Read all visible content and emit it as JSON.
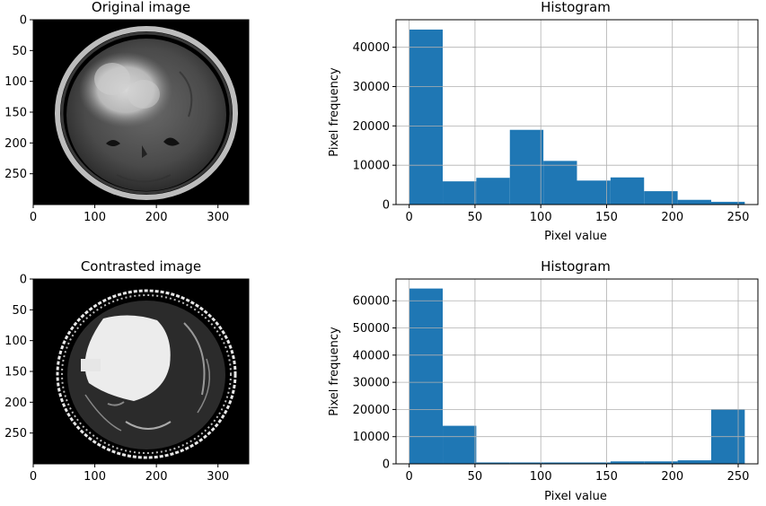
{
  "chart_data": [
    {
      "type": "image",
      "title": "Original image",
      "xticks": [
        0,
        100,
        200,
        300
      ],
      "yticks": [
        0,
        50,
        100,
        150,
        200,
        250
      ],
      "xlim": [
        0,
        350
      ],
      "ylim": [
        300,
        0
      ],
      "image_description_key": "mri-original"
    },
    {
      "type": "bar",
      "title": "Histogram",
      "xlabel": "Pixel value",
      "ylabel": "Pixel frequency",
      "grid": true,
      "xlim": [
        -10,
        265
      ],
      "ylim": [
        0,
        47000
      ],
      "xticks": [
        0,
        50,
        100,
        150,
        200,
        250
      ],
      "yticks": [
        0,
        10000,
        20000,
        30000,
        40000
      ],
      "bin_edges": [
        0,
        25.5,
        51,
        76.5,
        102,
        127.5,
        153,
        178.5,
        204,
        229.5,
        255
      ],
      "values": [
        44500,
        5900,
        6800,
        19000,
        11100,
        6100,
        6900,
        3400,
        1200,
        700
      ],
      "color": "#1f77b4"
    },
    {
      "type": "image",
      "title": "Contrasted image",
      "xticks": [
        0,
        100,
        200,
        300
      ],
      "yticks": [
        0,
        50,
        100,
        150,
        200,
        250
      ],
      "xlim": [
        0,
        350
      ],
      "ylim": [
        300,
        0
      ],
      "image_description_key": "mri-contrasted"
    },
    {
      "type": "bar",
      "title": "Histogram",
      "xlabel": "Pixel value",
      "ylabel": "Pixel frequency",
      "grid": true,
      "xlim": [
        -10,
        265
      ],
      "ylim": [
        0,
        68000
      ],
      "xticks": [
        0,
        50,
        100,
        150,
        200,
        250
      ],
      "yticks": [
        0,
        10000,
        20000,
        30000,
        40000,
        50000,
        60000
      ],
      "bin_edges": [
        0,
        25.5,
        51,
        76.5,
        102,
        127.5,
        153,
        178.5,
        204,
        229.5,
        255
      ],
      "values": [
        64500,
        14000,
        500,
        500,
        500,
        500,
        900,
        900,
        1300,
        20000
      ],
      "color": "#1f77b4"
    }
  ]
}
